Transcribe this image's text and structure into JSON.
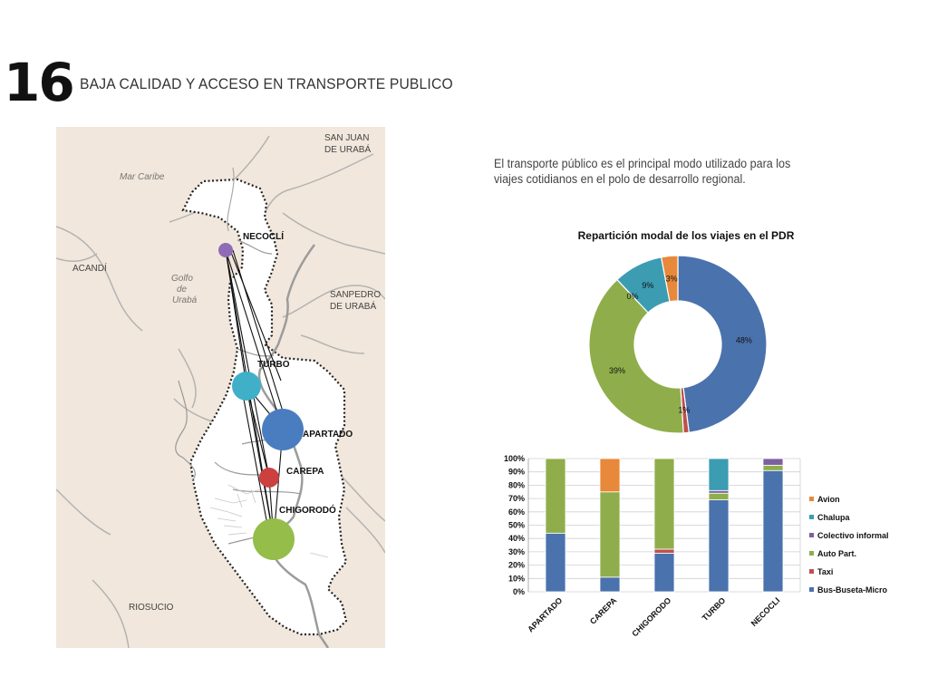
{
  "page": {
    "number": "16",
    "title": "BAJA CALIDAD Y ACCESO EN TRANSPORTE PUBLICO",
    "intro_line1": "El transporte público es el principal modo utilizado  para los",
    "intro_line2": "viajes cotidianos en el polo de desarrollo  regional."
  },
  "map": {
    "labels": {
      "mar_caribe": "Mar Caribe",
      "golfo_1": "Golfo",
      "golfo_2": "de",
      "golfo_3": "Urabá",
      "acandi": "ACANDÍ",
      "san_juan_1": "SAN JUAN",
      "san_juan_2": "DE URABÁ",
      "sanpedro_1": "SANPEDRO",
      "sanpedro_2": "DE URABÁ",
      "riosucio": "RIOSUCIO"
    },
    "nodes": [
      {
        "name": "NECOCLÍ",
        "color": "#8e6bb5",
        "size": "small"
      },
      {
        "name": "TURBO",
        "color": "#3fb0c8",
        "size": "medium"
      },
      {
        "name": "APARTADO",
        "color": "#4a7dc0",
        "size": "large"
      },
      {
        "name": "CAREPA",
        "color": "#cc4040",
        "size": "small"
      },
      {
        "name": "CHIGORODÓ",
        "color": "#94bd4a",
        "size": "large"
      }
    ]
  },
  "chart_data": [
    {
      "type": "pie",
      "title": "Repartición modal de los viajes en el PDR",
      "slices": [
        {
          "label": "Bus-Buseta-Micro",
          "value": 48,
          "display": "48%",
          "color": "#4a72ad"
        },
        {
          "label": "Taxi",
          "value": 1,
          "display": "1%",
          "color": "#c0504d"
        },
        {
          "label": "Auto Part.",
          "value": 39,
          "display": "39%",
          "color": "#8fae4b"
        },
        {
          "label": "Colectivo informal",
          "value": 0,
          "display": "0%",
          "color": "#7d60a0"
        },
        {
          "label": "Chalupa",
          "value": 9,
          "display": "9%",
          "color": "#3b9cb2"
        },
        {
          "label": "Avion",
          "value": 3,
          "display": "3%",
          "color": "#e8883a"
        }
      ]
    },
    {
      "type": "bar",
      "stacked": true,
      "categories": [
        "APARTADO",
        "CAREPA",
        "CHIGORODO",
        "TURBO",
        "NECOCLI"
      ],
      "ylim": [
        0,
        100
      ],
      "y_ticks": [
        "0%",
        "10%",
        "20%",
        "30%",
        "40%",
        "50%",
        "60%",
        "70%",
        "80%",
        "90%",
        "100%"
      ],
      "legend_position": "right",
      "series": [
        {
          "name": "Bus-Buseta-Micro",
          "color": "#4a72ad",
          "values": [
            44,
            11,
            29,
            69,
            91
          ]
        },
        {
          "name": "Taxi",
          "color": "#c0504d",
          "values": [
            0,
            0,
            3,
            0,
            0
          ]
        },
        {
          "name": "Auto Part.",
          "color": "#8fae4b",
          "values": [
            56,
            64,
            68,
            5,
            4
          ]
        },
        {
          "name": "Colectivo informal",
          "color": "#7d60a0",
          "values": [
            0,
            0,
            0,
            2,
            5
          ]
        },
        {
          "name": "Chalupa",
          "color": "#3b9cb2",
          "values": [
            0,
            0,
            0,
            24,
            0
          ]
        },
        {
          "name": "Avion",
          "color": "#e8883a",
          "values": [
            0,
            25,
            0,
            0,
            0
          ]
        }
      ],
      "legend": [
        "Avion",
        "Chalupa",
        "Colectivo informal",
        "Auto Part.",
        "Taxi",
        "Bus-Buseta-Micro"
      ]
    }
  ]
}
